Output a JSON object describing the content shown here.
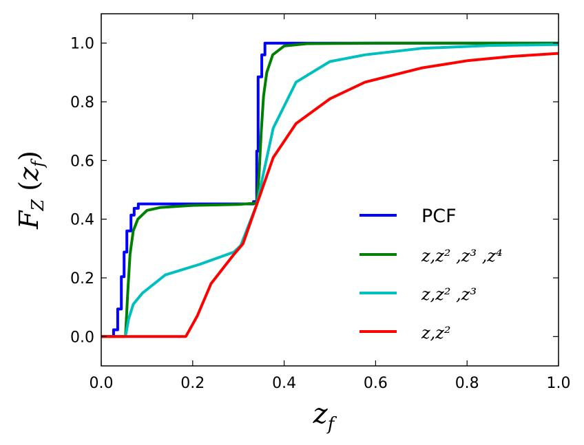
{
  "chart_data": {
    "type": "line",
    "title": "",
    "xlabel": "z_f",
    "ylabel": "F_Z(z_f)",
    "xlim": [
      0.0,
      1.0
    ],
    "ylim": [
      -0.1,
      1.1
    ],
    "xticks": [
      "0.0",
      "0.2",
      "0.4",
      "0.6",
      "0.8",
      "1.0"
    ],
    "yticks": [
      "0.0",
      "0.2",
      "0.4",
      "0.6",
      "0.8",
      "1.0"
    ],
    "grid": false,
    "legend_position": "lower-right",
    "series": [
      {
        "name": "PCF",
        "legend_label": "PCF",
        "color": "#0000ff",
        "step": true,
        "x": [
          0,
          0.027,
          0.027,
          0.036,
          0.036,
          0.044,
          0.044,
          0.05,
          0.05,
          0.056,
          0.056,
          0.065,
          0.065,
          0.072,
          0.072,
          0.081,
          0.081,
          0.333,
          0.333,
          0.34,
          0.34,
          0.343,
          0.343,
          0.351,
          0.351,
          0.358,
          0.358,
          1.0
        ],
        "y": [
          0,
          0,
          0.023,
          0.023,
          0.094,
          0.094,
          0.204,
          0.204,
          0.288,
          0.288,
          0.36,
          0.36,
          0.414,
          0.414,
          0.437,
          0.437,
          0.452,
          0.452,
          0.46,
          0.46,
          0.632,
          0.632,
          0.885,
          0.885,
          0.96,
          0.96,
          1.0,
          1.0
        ]
      },
      {
        "name": "z,z2,z3,z4",
        "legend_label": "z,z² ,z³ ,z⁴",
        "color": "#008000",
        "x": [
          0,
          0.053,
          0.058,
          0.063,
          0.07,
          0.08,
          0.1,
          0.13,
          0.2,
          0.3,
          0.34,
          0.345,
          0.35,
          0.355,
          0.362,
          0.375,
          0.4,
          0.45,
          0.6,
          1.0
        ],
        "y": [
          0,
          0,
          0.15,
          0.28,
          0.36,
          0.4,
          0.43,
          0.44,
          0.447,
          0.45,
          0.455,
          0.55,
          0.7,
          0.82,
          0.9,
          0.96,
          0.99,
          0.998,
          1.0,
          1.0
        ]
      },
      {
        "name": "z,z2,z3",
        "legend_label": "z,z² ,z³",
        "color": "#00bfbf",
        "x": [
          0,
          0.053,
          0.06,
          0.07,
          0.09,
          0.14,
          0.215,
          0.29,
          0.305,
          0.34,
          0.376,
          0.426,
          0.5,
          0.577,
          0.7,
          0.85,
          1.0
        ],
        "y": [
          0,
          0,
          0.06,
          0.11,
          0.148,
          0.21,
          0.246,
          0.288,
          0.31,
          0.45,
          0.71,
          0.867,
          0.937,
          0.96,
          0.982,
          0.992,
          0.995
        ]
      },
      {
        "name": "z,z2",
        "legend_label": "z,z²",
        "color": "#ff0000",
        "x": [
          0,
          0.185,
          0.21,
          0.24,
          0.27,
          0.29,
          0.31,
          0.34,
          0.376,
          0.426,
          0.5,
          0.577,
          0.7,
          0.8,
          0.9,
          1.0
        ],
        "y": [
          0,
          0,
          0.07,
          0.18,
          0.24,
          0.28,
          0.316,
          0.45,
          0.61,
          0.726,
          0.81,
          0.867,
          0.915,
          0.94,
          0.955,
          0.965
        ]
      }
    ]
  }
}
